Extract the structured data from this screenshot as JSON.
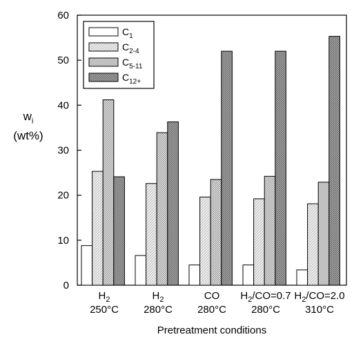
{
  "chart_data": {
    "type": "bar",
    "xlabel": "Pretreatment conditions",
    "ylabel": {
      "var": "w",
      "sub": "i",
      "unit": "(wt%)"
    },
    "ylim": [
      0,
      60
    ],
    "yticks": [
      0,
      10,
      20,
      30,
      40,
      50,
      60
    ],
    "grid": false,
    "legend_position": "top-left",
    "categories": [
      {
        "line1": {
          "main": "H",
          "sub": "2",
          "rest": ""
        },
        "line2": "250°C"
      },
      {
        "line1": {
          "main": "H",
          "sub": "2",
          "rest": ""
        },
        "line2": "280°C"
      },
      {
        "line1": {
          "main": "CO",
          "sub": "",
          "rest": ""
        },
        "line2": "280°C"
      },
      {
        "line1": {
          "main": "H",
          "sub": "2",
          "rest": "/CO=0.7"
        },
        "line2": "280°C"
      },
      {
        "line1": {
          "main": "H",
          "sub": "2",
          "rest": "/CO=2.0"
        },
        "line2": "310°C"
      }
    ],
    "series": [
      {
        "name": "C",
        "sub": "1",
        "fill": "#ffffff",
        "pattern": "none",
        "values": [
          8.8,
          6.6,
          4.5,
          4.5,
          3.4
        ]
      },
      {
        "name": "C",
        "sub": "2-4",
        "fill": "#e4e4e4",
        "pattern": "light",
        "values": [
          25.3,
          22.6,
          19.6,
          19.2,
          18.1
        ]
      },
      {
        "name": "C",
        "sub": "5-11",
        "fill": "#d2d2d2",
        "pattern": "medium",
        "values": [
          41.2,
          33.9,
          23.5,
          24.2,
          22.9
        ]
      },
      {
        "name": "C",
        "sub": "12+",
        "fill": "#a8a8a8",
        "pattern": "dark",
        "values": [
          24.1,
          36.3,
          52.0,
          52.0,
          55.3
        ]
      }
    ]
  }
}
